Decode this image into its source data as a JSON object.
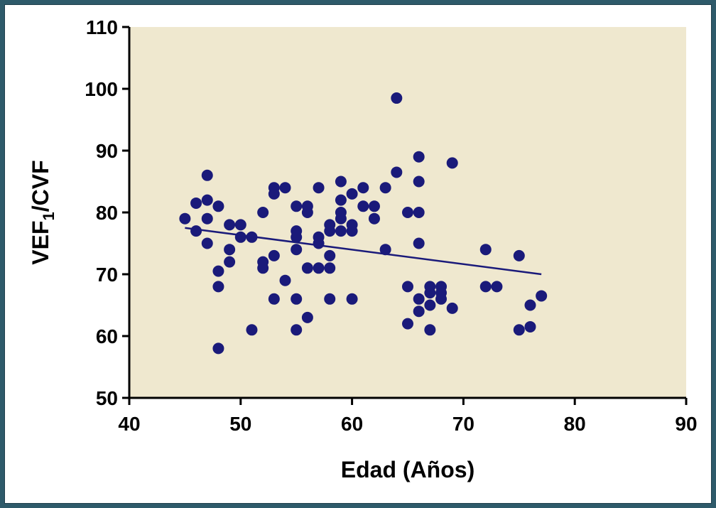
{
  "chart_data": {
    "type": "scatter",
    "xlabel": "Edad (Años)",
    "ylabel_main": "VEF",
    "ylabel_sub": "1",
    "ylabel_tail": "/CVF",
    "xlim": [
      40,
      90
    ],
    "ylim": [
      50,
      110
    ],
    "x_ticks": [
      40,
      50,
      60,
      70,
      80,
      90
    ],
    "y_ticks": [
      50,
      60,
      70,
      80,
      90,
      100,
      110
    ],
    "grid": false,
    "plot_background": "#efe8cf",
    "point_color": "#1a1a7a",
    "line_color": "#1a1a7a",
    "trendline": {
      "x": [
        45,
        77
      ],
      "y": [
        77.5,
        70
      ]
    },
    "points": [
      {
        "x": 45,
        "y": 79
      },
      {
        "x": 46,
        "y": 81.5
      },
      {
        "x": 46,
        "y": 77
      },
      {
        "x": 47,
        "y": 86
      },
      {
        "x": 47,
        "y": 82
      },
      {
        "x": 47,
        "y": 79
      },
      {
        "x": 47,
        "y": 75
      },
      {
        "x": 48,
        "y": 81
      },
      {
        "x": 48,
        "y": 70.5
      },
      {
        "x": 48,
        "y": 68
      },
      {
        "x": 48,
        "y": 58
      },
      {
        "x": 49,
        "y": 78
      },
      {
        "x": 49,
        "y": 74
      },
      {
        "x": 49,
        "y": 72
      },
      {
        "x": 50,
        "y": 78
      },
      {
        "x": 50,
        "y": 76
      },
      {
        "x": 51,
        "y": 76
      },
      {
        "x": 51,
        "y": 61
      },
      {
        "x": 52,
        "y": 80
      },
      {
        "x": 52,
        "y": 72
      },
      {
        "x": 52,
        "y": 71
      },
      {
        "x": 53,
        "y": 84
      },
      {
        "x": 53,
        "y": 83
      },
      {
        "x": 53,
        "y": 73
      },
      {
        "x": 53,
        "y": 66
      },
      {
        "x": 54,
        "y": 84
      },
      {
        "x": 54,
        "y": 69
      },
      {
        "x": 55,
        "y": 81
      },
      {
        "x": 55,
        "y": 77
      },
      {
        "x": 55,
        "y": 76
      },
      {
        "x": 55,
        "y": 74
      },
      {
        "x": 55,
        "y": 66
      },
      {
        "x": 55,
        "y": 61
      },
      {
        "x": 56,
        "y": 81
      },
      {
        "x": 56,
        "y": 80
      },
      {
        "x": 56,
        "y": 71
      },
      {
        "x": 56,
        "y": 63
      },
      {
        "x": 57,
        "y": 84
      },
      {
        "x": 57,
        "y": 76
      },
      {
        "x": 57,
        "y": 75
      },
      {
        "x": 57,
        "y": 71
      },
      {
        "x": 58,
        "y": 78
      },
      {
        "x": 58,
        "y": 77
      },
      {
        "x": 58,
        "y": 73
      },
      {
        "x": 58,
        "y": 71
      },
      {
        "x": 58,
        "y": 66
      },
      {
        "x": 59,
        "y": 85
      },
      {
        "x": 59,
        "y": 82
      },
      {
        "x": 59,
        "y": 80
      },
      {
        "x": 59,
        "y": 79
      },
      {
        "x": 59,
        "y": 77
      },
      {
        "x": 60,
        "y": 83
      },
      {
        "x": 60,
        "y": 78
      },
      {
        "x": 60,
        "y": 77
      },
      {
        "x": 60,
        "y": 66
      },
      {
        "x": 61,
        "y": 84
      },
      {
        "x": 61,
        "y": 81
      },
      {
        "x": 62,
        "y": 81
      },
      {
        "x": 62,
        "y": 79
      },
      {
        "x": 63,
        "y": 84
      },
      {
        "x": 63,
        "y": 74
      },
      {
        "x": 64,
        "y": 98.5
      },
      {
        "x": 64,
        "y": 86.5
      },
      {
        "x": 65,
        "y": 80
      },
      {
        "x": 65,
        "y": 68
      },
      {
        "x": 65,
        "y": 62
      },
      {
        "x": 66,
        "y": 89
      },
      {
        "x": 66,
        "y": 85
      },
      {
        "x": 66,
        "y": 80
      },
      {
        "x": 66,
        "y": 75
      },
      {
        "x": 66,
        "y": 66
      },
      {
        "x": 66,
        "y": 64
      },
      {
        "x": 67,
        "y": 68
      },
      {
        "x": 67,
        "y": 67
      },
      {
        "x": 67,
        "y": 65
      },
      {
        "x": 67,
        "y": 61
      },
      {
        "x": 68,
        "y": 68
      },
      {
        "x": 68,
        "y": 67
      },
      {
        "x": 68,
        "y": 66
      },
      {
        "x": 69,
        "y": 88
      },
      {
        "x": 69,
        "y": 64.5
      },
      {
        "x": 72,
        "y": 74
      },
      {
        "x": 72,
        "y": 68
      },
      {
        "x": 73,
        "y": 68
      },
      {
        "x": 75,
        "y": 73
      },
      {
        "x": 75,
        "y": 61
      },
      {
        "x": 76,
        "y": 65
      },
      {
        "x": 76,
        "y": 61.5
      },
      {
        "x": 77,
        "y": 66.5
      }
    ]
  }
}
